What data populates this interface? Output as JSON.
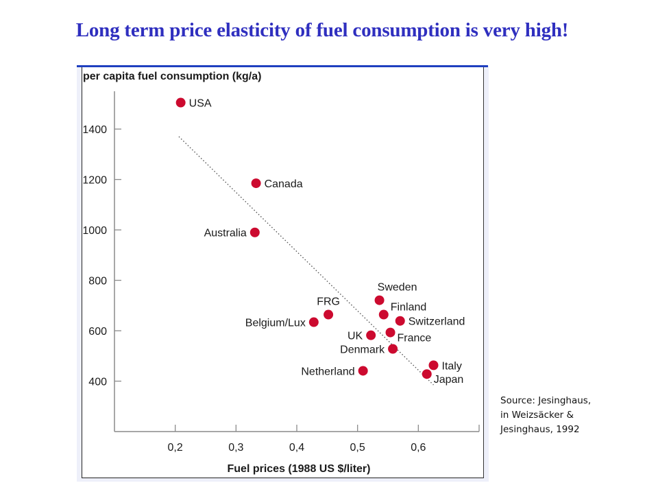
{
  "slide": {
    "title": "Long term price elasticity of fuel consumption is very high!",
    "source_lines": [
      "Source: Jesinghaus,",
      "in Weizsäcker &",
      "Jesinghaus, 1992"
    ]
  },
  "colors": {
    "title": "#2f2fbf",
    "point": "#cc0a2f",
    "axis": "#8a8a8a",
    "trend": "#555555",
    "frame_line": "#1f3fbf"
  },
  "chart_data": {
    "type": "scatter",
    "title": "",
    "ylabel": "per capita fuel consumption (kg/a)",
    "xlabel": "Fuel prices (1988 US $/liter)",
    "xlim": [
      0.1,
      0.7
    ],
    "ylim": [
      200,
      1550
    ],
    "xticks": [
      {
        "value": 0.2,
        "label": "0,2"
      },
      {
        "value": 0.3,
        "label": "0,3"
      },
      {
        "value": 0.4,
        "label": "0,4"
      },
      {
        "value": 0.5,
        "label": "0,5"
      },
      {
        "value": 0.6,
        "label": "0,6"
      },
      {
        "value": 0.7,
        "label": ""
      }
    ],
    "yticks": [
      {
        "value": 400,
        "label": "400"
      },
      {
        "value": 600,
        "label": "600"
      },
      {
        "value": 800,
        "label": "800"
      },
      {
        "value": 1000,
        "label": "1000"
      },
      {
        "value": 1200,
        "label": "1200"
      },
      {
        "value": 1400,
        "label": "1400"
      }
    ],
    "grid": false,
    "legend": "none",
    "points": [
      {
        "name": "USA",
        "x": 0.209,
        "y": 1505,
        "label_side": "right"
      },
      {
        "name": "Canada",
        "x": 0.333,
        "y": 1185,
        "label_side": "right"
      },
      {
        "name": "Australia",
        "x": 0.331,
        "y": 990,
        "label_side": "left"
      },
      {
        "name": "FRG",
        "x": 0.452,
        "y": 664,
        "label_side": "above"
      },
      {
        "name": "Belgium/Lux",
        "x": 0.428,
        "y": 634,
        "label_side": "left"
      },
      {
        "name": "UK",
        "x": 0.522,
        "y": 582,
        "label_side": "left"
      },
      {
        "name": "Netherland",
        "x": 0.509,
        "y": 441,
        "label_side": "left"
      },
      {
        "name": "Sweden",
        "x": 0.536,
        "y": 721,
        "label_side": "above"
      },
      {
        "name": "Finland",
        "x": 0.543,
        "y": 664,
        "label_side": "upper-right"
      },
      {
        "name": "Switzerland",
        "x": 0.57,
        "y": 639,
        "label_side": "right"
      },
      {
        "name": "France",
        "x": 0.554,
        "y": 593,
        "label_side": "lower-right"
      },
      {
        "name": "Denmark",
        "x": 0.558,
        "y": 528,
        "label_side": "left"
      },
      {
        "name": "Italy",
        "x": 0.625,
        "y": 463,
        "label_side": "right"
      },
      {
        "name": "Japan",
        "x": 0.614,
        "y": 428,
        "label_side": "lower-right"
      }
    ],
    "trendline": {
      "style": "dotted",
      "start": {
        "x": 0.206,
        "y": 1370
      },
      "end": {
        "x": 0.625,
        "y": 385
      }
    }
  }
}
